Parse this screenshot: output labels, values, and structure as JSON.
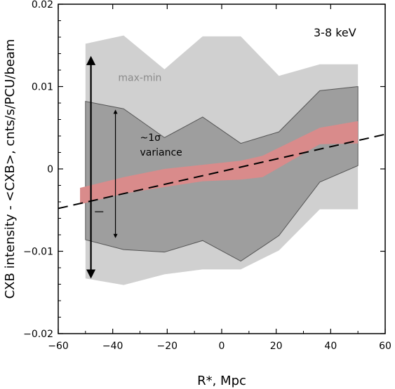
{
  "chart_data": {
    "type": "area",
    "band_label": "3-8 keV",
    "xlabel": "R*, Mpc",
    "ylabel": "CXB intensity - <CXB>, cnts/s/PCU/beam",
    "xlim": [
      -60,
      60
    ],
    "ylim": [
      -0.02,
      0.02
    ],
    "x_ticks": [
      -60,
      -40,
      -20,
      0,
      20,
      40,
      60
    ],
    "x_tick_labels": [
      "−60",
      "−40",
      "−20",
      "0",
      "20",
      "40",
      "60"
    ],
    "y_ticks": [
      -0.02,
      -0.01,
      0,
      0.01,
      0.02
    ],
    "y_tick_labels": [
      "−0.02",
      "−0.01",
      "0",
      "0.01",
      "0.02"
    ],
    "grid": false,
    "series": [
      {
        "kind": "band",
        "color": "#d0d0d0",
        "x": [
          -50,
          -36,
          -21,
          -7,
          7,
          21,
          36,
          50
        ],
        "lower": [
          -0.0133,
          -0.0141,
          -0.0128,
          -0.0122,
          -0.0122,
          -0.0099,
          -0.0049,
          -0.0049
        ],
        "upper": [
          0.0152,
          0.0162,
          0.0121,
          0.0161,
          0.0161,
          0.0113,
          0.0127,
          0.0127
        ]
      },
      {
        "kind": "band",
        "color": "#9e9e9e",
        "x": [
          -50,
          -36,
          -21,
          -7,
          7,
          21,
          36,
          50
        ],
        "lower": [
          -0.0086,
          -0.0098,
          -0.0101,
          -0.0087,
          -0.0112,
          -0.0081,
          -0.0016,
          0.0004
        ],
        "upper": [
          0.0082,
          0.0073,
          0.0038,
          0.0063,
          0.0031,
          0.0045,
          0.0095,
          0.01
        ]
      },
      {
        "kind": "band",
        "color": "#d98b8b",
        "x": [
          -52,
          -36,
          -21,
          -7,
          7,
          15,
          36,
          50
        ],
        "lower": [
          -0.0043,
          -0.003,
          -0.0022,
          -0.0015,
          -0.0013,
          -0.001,
          0.003,
          0.0031
        ],
        "upper": [
          -0.0023,
          -0.001,
          0.0,
          0.0005,
          0.001,
          0.0016,
          0.005,
          0.0058
        ]
      },
      {
        "kind": "line",
        "style": "dashed",
        "color": "#000000",
        "x": [
          -60,
          60
        ],
        "y": [
          -0.0048,
          0.0042
        ]
      }
    ],
    "annotations": [
      {
        "text": "max-min",
        "x": -38,
        "y": 0.0107,
        "color": "#8a8a8a"
      },
      {
        "text": "~1σ",
        "x": -30,
        "y": 0.0034
      },
      {
        "text": "variance",
        "x": -30,
        "y": 0.0016
      }
    ],
    "arrows": [
      {
        "name": "max-min",
        "x": -48,
        "y_top": 0.0135,
        "y_bottom": -0.0131
      },
      {
        "name": "sigma",
        "x": -39,
        "y_top": 0.0071,
        "y_bottom": -0.0083
      }
    ],
    "marker": {
      "x": -45,
      "y": -0.0052
    }
  }
}
